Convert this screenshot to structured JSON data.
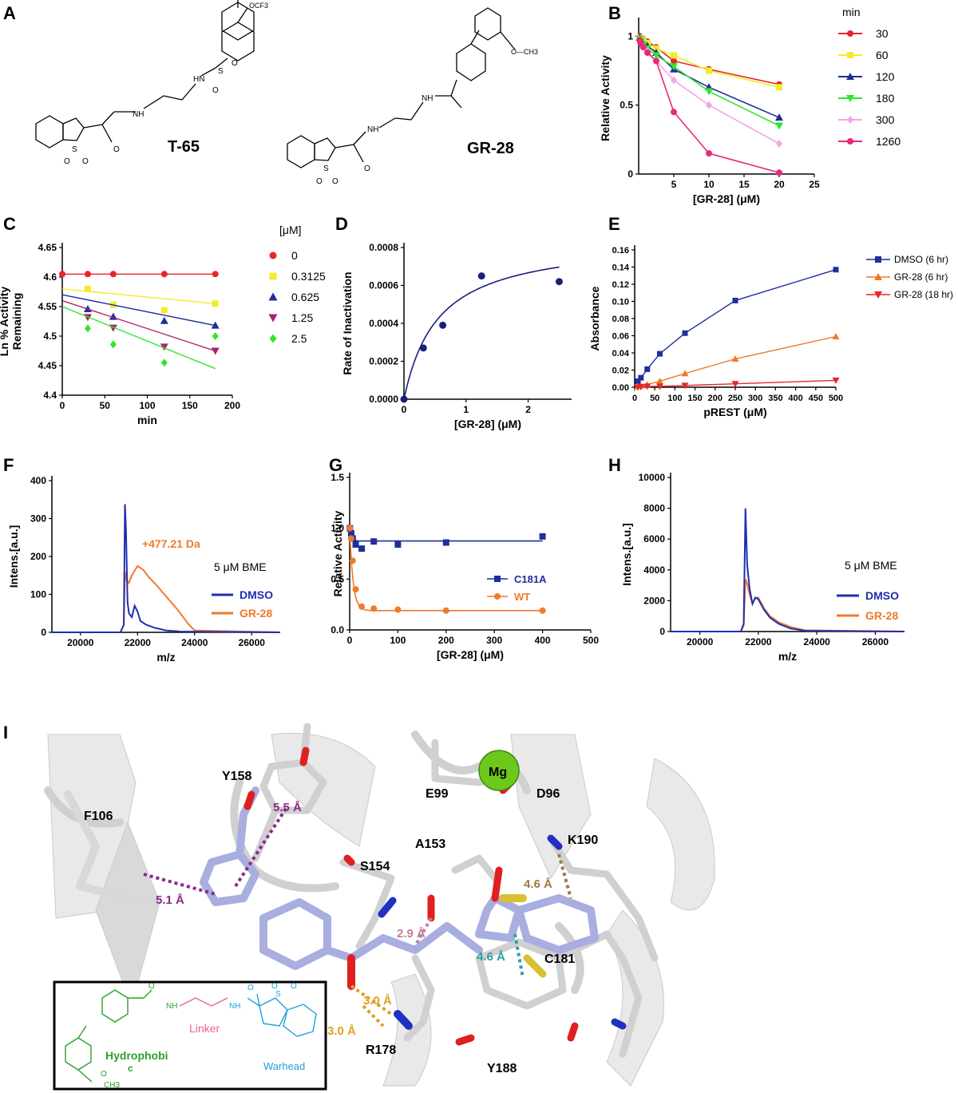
{
  "figure": {
    "panel_labels": [
      "A",
      "B",
      "C",
      "D",
      "E",
      "F",
      "G",
      "H",
      "I"
    ],
    "A": {
      "compounds": [
        {
          "name": "T-65",
          "substituent": "OCF3",
          "atoms": [
            "HN",
            "NH",
            "S",
            "O",
            "O",
            "O",
            "S",
            "O",
            "O"
          ]
        },
        {
          "name": "GR-28",
          "substituent": "O—CH3",
          "atoms": [
            "NH",
            "NH",
            "S",
            "O",
            "O",
            "O"
          ]
        }
      ]
    },
    "I": {
      "residues": [
        "Y158",
        "F106",
        "E99",
        "D96",
        "A153",
        "K190",
        "S154",
        "C181",
        "R178",
        "Y188"
      ],
      "ion": "Mg",
      "distances": [
        {
          "label": "5.5 Å",
          "color": "#8a2a8a"
        },
        {
          "label": "5.1 Å",
          "color": "#8a2a8a"
        },
        {
          "label": "4.6 Å",
          "color": "#a07a40"
        },
        {
          "label": "2.9 Å",
          "color": "#c080a0"
        },
        {
          "label": "4.6 Å",
          "color": "#2aa0a0"
        },
        {
          "label": "3.0 Å",
          "color": "#e0a020"
        },
        {
          "label": "3.0 Å",
          "color": "#e0a020"
        }
      ],
      "inset": {
        "parts": [
          {
            "label": "Hydrophobi",
            "label2": "c",
            "color": "#2ca02c"
          },
          {
            "label": "Linker",
            "color": "#e8609a"
          },
          {
            "label": "Warhead",
            "color": "#1fa0d8"
          }
        ],
        "atoms": [
          "O",
          "NH",
          "NH",
          "O",
          "S",
          "O",
          "O",
          "O",
          "CH3"
        ]
      }
    }
  },
  "chart_data": [
    {
      "panel": "B",
      "type": "scatter",
      "xlabel": "[GR-28] (μM)",
      "ylabel": "Relative Activity",
      "xlim": [
        0,
        25
      ],
      "ylim": [
        0,
        1.1
      ],
      "xticks": [
        5,
        10,
        15,
        20,
        25
      ],
      "yticks": [
        0,
        0.5,
        1.0
      ],
      "legend_title": "min",
      "legend_position": "right",
      "x": [
        0.156,
        0.3125,
        0.625,
        1.25,
        2.5,
        5,
        10,
        20
      ],
      "series": [
        {
          "name": "30",
          "color": "#e8262a",
          "marker": "circle",
          "values": [
            1.0,
            0.99,
            0.98,
            0.96,
            0.92,
            0.82,
            0.76,
            0.65
          ]
        },
        {
          "name": "60",
          "color": "#f2ec2a",
          "marker": "square",
          "values": [
            0.99,
            0.98,
            0.97,
            0.95,
            0.91,
            0.86,
            0.75,
            0.63
          ]
        },
        {
          "name": "120",
          "color": "#1f2e9c",
          "marker": "triangle-up",
          "values": [
            0.99,
            0.97,
            0.95,
            0.93,
            0.88,
            0.76,
            0.63,
            0.41
          ]
        },
        {
          "name": "180",
          "color": "#2ee62a",
          "marker": "triangle-down",
          "values": [
            0.98,
            0.96,
            0.94,
            0.91,
            0.86,
            0.78,
            0.6,
            0.35
          ]
        },
        {
          "name": "300",
          "color": "#f4a6e6",
          "marker": "diamond",
          "values": [
            0.97,
            0.95,
            0.93,
            0.89,
            0.82,
            0.68,
            0.5,
            0.22
          ]
        },
        {
          "name": "1260",
          "color": "#e8287a",
          "marker": "circle",
          "values": [
            0.97,
            0.95,
            0.92,
            0.88,
            0.82,
            0.45,
            0.15,
            0.01
          ]
        }
      ]
    },
    {
      "panel": "C",
      "type": "scatter",
      "xlabel": "min",
      "ylabel": "Ln % Activity Remaining",
      "xlim": [
        0,
        200
      ],
      "ylim": [
        4.4,
        4.65
      ],
      "xticks": [
        0,
        50,
        100,
        150,
        200
      ],
      "yticks": [
        4.4,
        4.45,
        4.5,
        4.55,
        4.6,
        4.65
      ],
      "legend_title": "[μM]",
      "legend_position": "right",
      "x": [
        0,
        30,
        60,
        120,
        180
      ],
      "series": [
        {
          "name": "0",
          "color": "#e8262a",
          "marker": "circle",
          "values": [
            4.605,
            4.605,
            4.605,
            4.605,
            4.605
          ]
        },
        {
          "name": "0.3125",
          "color": "#f2ec2a",
          "marker": "square",
          "values": [
            4.605,
            4.58,
            4.553,
            4.544,
            4.555
          ]
        },
        {
          "name": "0.625",
          "color": "#1f2e9c",
          "marker": "triangle-up",
          "values": [
            4.605,
            4.546,
            4.533,
            4.526,
            4.518
          ]
        },
        {
          "name": "1.25",
          "color": "#a8226e",
          "marker": "triangle-down",
          "values": [
            4.605,
            4.532,
            4.514,
            4.482,
            4.475
          ]
        },
        {
          "name": "2.5",
          "color": "#2ee62a",
          "marker": "diamond",
          "values": [
            4.605,
            4.513,
            4.486,
            4.455,
            4.5
          ]
        }
      ]
    },
    {
      "panel": "D",
      "type": "scatter",
      "xlabel": "[GR-28] (μM)",
      "ylabel": "Rate of Inactivation",
      "xlim": [
        0,
        2.7
      ],
      "ylim": [
        0,
        0.0008
      ],
      "xticks": [
        0,
        1,
        2
      ],
      "yticks": [
        "0.0000",
        "0.0002",
        "0.0004",
        "0.0006",
        "0.0008"
      ],
      "series": [
        {
          "name": "",
          "color": "#1a1f7a",
          "marker": "circle",
          "x": [
            0,
            0.3125,
            0.625,
            1.25,
            2.5
          ],
          "values": [
            0,
            0.00027,
            0.00039,
            0.00065,
            0.00062
          ]
        }
      ]
    },
    {
      "panel": "E",
      "type": "line",
      "xlabel": "pREST (μM)",
      "ylabel": "Absorbance",
      "xlim": [
        0,
        500
      ],
      "ylim": [
        0,
        0.16
      ],
      "xticks": [
        0,
        50,
        100,
        150,
        200,
        250,
        300,
        350,
        400,
        450,
        500
      ],
      "yticks": [
        "0.00",
        "0.02",
        "0.04",
        "0.06",
        "0.08",
        "0.10",
        "0.12",
        "0.14",
        "0.16"
      ],
      "legend_position": "right",
      "x": [
        7.8,
        15.6,
        31.25,
        62.5,
        125,
        250,
        500
      ],
      "series": [
        {
          "name": "DMSO (6 hr)",
          "color": "#1f2e9c",
          "marker": "square",
          "values": [
            0.007,
            0.011,
            0.021,
            0.039,
            0.063,
            0.101,
            0.137
          ]
        },
        {
          "name": "GR-28 (6 hr)",
          "color": "#f07a28",
          "marker": "triangle-up",
          "values": [
            0.001,
            0.002,
            0.003,
            0.007,
            0.016,
            0.033,
            0.059
          ]
        },
        {
          "name": "GR-28 (18 hr)",
          "color": "#e8262a",
          "marker": "triangle-down",
          "values": [
            0.0,
            0.0005,
            0.001,
            0.001,
            0.002,
            0.004,
            0.008
          ]
        }
      ]
    },
    {
      "panel": "F",
      "type": "line",
      "xlabel": "m/z",
      "ylabel": "Intens.[a.u.]",
      "xlim": [
        19000,
        27000
      ],
      "ylim": [
        0,
        400
      ],
      "xticks": [
        20000,
        22000,
        24000,
        26000
      ],
      "yticks": [
        0,
        100,
        200,
        300,
        400
      ],
      "annotations": [
        "+477.21 Da",
        "5 μM BME"
      ],
      "legend_position": "right",
      "series": [
        {
          "name": "DMSO",
          "color": "#1f2eb0",
          "x": [
            19000,
            21400,
            21520,
            21560,
            21600,
            21650,
            21700,
            21800,
            21900,
            22000,
            22100,
            22300,
            22600,
            23000,
            23500,
            27000
          ],
          "values": [
            0,
            0,
            20,
            338,
            260,
            80,
            50,
            40,
            70,
            55,
            30,
            20,
            12,
            5,
            2,
            0
          ]
        },
        {
          "name": "GR-28",
          "color": "#f07a28",
          "x": [
            19000,
            21400,
            21520,
            21560,
            21600,
            21700,
            21800,
            22000,
            22200,
            22400,
            22600,
            23000,
            23400,
            23800,
            24000,
            27000
          ],
          "values": [
            0,
            0,
            20,
            160,
            140,
            130,
            150,
            175,
            165,
            145,
            130,
            95,
            60,
            20,
            5,
            0
          ]
        }
      ]
    },
    {
      "panel": "G",
      "type": "scatter",
      "xlabel": "[GR-28] (μM)",
      "ylabel": "Relative Activity",
      "xlim": [
        0,
        500
      ],
      "ylim": [
        0,
        1.5
      ],
      "xticks": [
        0,
        100,
        200,
        300,
        400,
        500
      ],
      "yticks": [
        "0.0",
        "0.5",
        "1.0",
        "1.5"
      ],
      "legend_position": "right",
      "x": [
        0.5,
        3.1,
        6.25,
        12.5,
        25,
        50,
        100,
        200,
        400
      ],
      "series": [
        {
          "name": "C181A",
          "color": "#1f2e9c",
          "marker": "square",
          "values": [
            1.0,
            0.95,
            0.9,
            0.84,
            0.8,
            0.87,
            0.84,
            0.86,
            0.92
          ]
        },
        {
          "name": "WT",
          "color": "#f07a28",
          "marker": "circle",
          "values": [
            1.0,
            0.9,
            0.68,
            0.4,
            0.23,
            0.21,
            0.2,
            0.19,
            0.19
          ]
        }
      ]
    },
    {
      "panel": "H",
      "type": "line",
      "xlabel": "m/z",
      "ylabel": "Intens.[a.u.]",
      "xlim": [
        19000,
        27000
      ],
      "ylim": [
        0,
        10000
      ],
      "xticks": [
        20000,
        22000,
        24000,
        26000
      ],
      "yticks": [
        0,
        2000,
        4000,
        6000,
        8000,
        10000
      ],
      "annotations": [
        "5 μM BME"
      ],
      "legend_position": "right",
      "series": [
        {
          "name": "DMSO",
          "color": "#1f2eb0",
          "x": [
            19000,
            21400,
            21500,
            21560,
            21620,
            21700,
            21800,
            21900,
            22000,
            22200,
            22400,
            22700,
            23100,
            23600,
            27000
          ],
          "values": [
            0,
            0,
            500,
            8000,
            4300,
            2800,
            1800,
            2200,
            2100,
            1400,
            900,
            500,
            200,
            50,
            0
          ]
        },
        {
          "name": "GR-28",
          "color": "#f07a28",
          "x": [
            19000,
            21400,
            21500,
            21560,
            21620,
            21700,
            21800,
            21900,
            22000,
            22200,
            22400,
            22700,
            23100,
            23600,
            27000
          ],
          "values": [
            0,
            0,
            400,
            3400,
            3100,
            2400,
            1800,
            2200,
            2200,
            1500,
            1000,
            600,
            300,
            80,
            0
          ]
        }
      ]
    }
  ]
}
